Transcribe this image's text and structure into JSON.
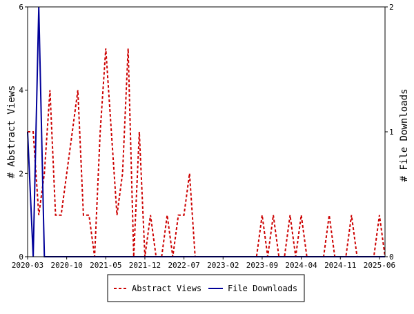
{
  "chart_data": {
    "type": "line",
    "title": "",
    "xlabel": "",
    "ylabel": "# Abstract Views",
    "y2label": "# File Downloads",
    "x_tick_labels": [
      "2020-03",
      "2020-10",
      "2021-05",
      "2021-12",
      "2022-07",
      "2023-02",
      "2023-09",
      "2024-04",
      "2024-11",
      "2025-06"
    ],
    "ylim": [
      0,
      6
    ],
    "y_ticks": [
      "0",
      "2",
      "4",
      "6"
    ],
    "y2lim": [
      0,
      2
    ],
    "y2_ticks": [
      "0",
      "1",
      "2"
    ],
    "grid": false,
    "legend_position": "bottom",
    "colors": {
      "abstract_views": "#cc0000",
      "file_downloads": "#000099"
    },
    "series": [
      {
        "name": "Abstract Views",
        "axis": "left",
        "style": "dashed",
        "x": [
          "2020-03",
          "2020-04",
          "2020-05",
          "2020-06",
          "2020-07",
          "2020-08",
          "2020-09",
          "2020-10",
          "2020-11",
          "2020-12",
          "2021-01",
          "2021-02",
          "2021-03",
          "2021-04",
          "2021-05",
          "2021-06",
          "2021-07",
          "2021-08",
          "2021-09",
          "2021-10",
          "2021-11",
          "2021-12",
          "2022-01",
          "2022-02",
          "2022-03",
          "2022-04",
          "2022-05",
          "2022-06",
          "2022-07",
          "2022-08",
          "2022-09",
          "2022-10",
          "2022-11",
          "2022-12",
          "2023-01",
          "2023-02",
          "2023-03",
          "2023-04",
          "2023-05",
          "2023-06",
          "2023-07",
          "2023-08",
          "2023-09",
          "2023-10",
          "2023-11",
          "2023-12",
          "2024-01",
          "2024-02",
          "2024-03",
          "2024-04",
          "2024-05",
          "2024-06",
          "2024-07",
          "2024-08",
          "2024-09",
          "2024-10",
          "2024-11",
          "2024-12",
          "2025-01",
          "2025-02",
          "2025-03",
          "2025-04",
          "2025-05",
          "2025-06",
          "2025-07"
        ],
        "values": [
          3,
          3,
          1,
          2,
          4,
          1,
          1,
          2,
          3,
          4,
          1,
          1,
          0,
          3,
          5,
          3,
          1,
          2,
          5,
          0,
          3,
          0,
          1,
          0,
          0,
          1,
          0,
          1,
          1,
          2,
          0,
          0,
          0,
          0,
          0,
          0,
          0,
          0,
          0,
          0,
          0,
          0,
          1,
          0,
          1,
          0,
          0,
          1,
          0,
          1,
          0,
          0,
          0,
          0,
          1,
          0,
          0,
          0,
          1,
          0,
          0,
          0,
          0,
          1,
          0
        ]
      },
      {
        "name": "File Downloads",
        "axis": "right",
        "style": "solid",
        "x": [
          "2020-03",
          "2020-04",
          "2020-05",
          "2020-06",
          "2020-07",
          "2020-08",
          "2020-09",
          "2020-10",
          "2020-11",
          "2020-12",
          "2021-01",
          "2021-02",
          "2021-03",
          "2021-04",
          "2021-05",
          "2021-06",
          "2021-07",
          "2021-08",
          "2021-09",
          "2021-10",
          "2021-11",
          "2021-12",
          "2022-01",
          "2022-02",
          "2022-03",
          "2022-04",
          "2022-05",
          "2022-06",
          "2022-07",
          "2022-08",
          "2022-09",
          "2022-10",
          "2022-11",
          "2022-12",
          "2023-01",
          "2023-02",
          "2023-03",
          "2023-04",
          "2023-05",
          "2023-06",
          "2023-07",
          "2023-08",
          "2023-09",
          "2023-10",
          "2023-11",
          "2023-12",
          "2024-01",
          "2024-02",
          "2024-03",
          "2024-04",
          "2024-05",
          "2024-06",
          "2024-07",
          "2024-08",
          "2024-09",
          "2024-10",
          "2024-11",
          "2024-12",
          "2025-01",
          "2025-02",
          "2025-03",
          "2025-04",
          "2025-05",
          "2025-06",
          "2025-07"
        ],
        "values": [
          1,
          0,
          2,
          0,
          0,
          0,
          0,
          0,
          0,
          0,
          0,
          0,
          0,
          0,
          0,
          0,
          0,
          0,
          0,
          0,
          0,
          0,
          0,
          0,
          0,
          0,
          0,
          0,
          0,
          0,
          0,
          0,
          0,
          0,
          0,
          0,
          0,
          0,
          0,
          0,
          0,
          0,
          0,
          0,
          0,
          0,
          0,
          0,
          0,
          0,
          0,
          0,
          0,
          0,
          0,
          0,
          0,
          0,
          0,
          0,
          0,
          0,
          0,
          0,
          0
        ]
      }
    ]
  }
}
